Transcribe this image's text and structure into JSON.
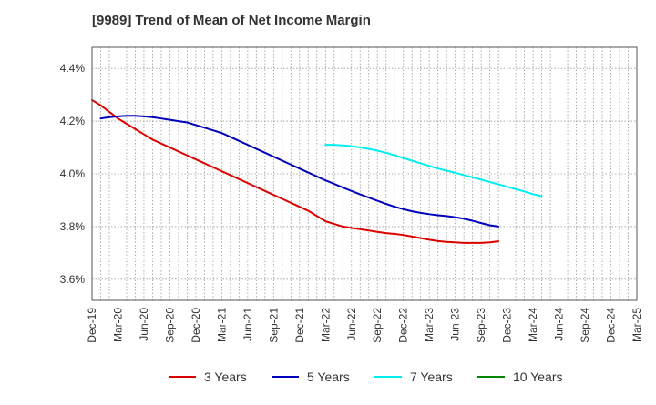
{
  "chart_data": {
    "type": "line",
    "title": "[9989]  Trend of Mean of Net Income Margin",
    "xlabel": "",
    "ylabel": "",
    "x_ticks": [
      "Dec-19",
      "Mar-20",
      "Jun-20",
      "Sep-20",
      "Dec-20",
      "Mar-21",
      "Jun-21",
      "Sep-21",
      "Dec-21",
      "Mar-22",
      "Jun-22",
      "Sep-22",
      "Dec-22",
      "Mar-23",
      "Jun-23",
      "Sep-23",
      "Dec-23",
      "Mar-24",
      "Jun-24",
      "Sep-24",
      "Dec-24",
      "Mar-25"
    ],
    "y_ticks": [
      "3.6%",
      "3.8%",
      "4.0%",
      "4.2%",
      "4.4%"
    ],
    "y_tick_values": [
      3.6,
      3.8,
      4.0,
      4.2,
      4.4
    ],
    "ylim": [
      3.52,
      4.48
    ],
    "grid": true,
    "legend_position": "bottom",
    "series": [
      {
        "name": "3 Years",
        "color": "#dd0000",
        "start_index": 0,
        "values": [
          4.28,
          4.26,
          4.235,
          4.21,
          4.19,
          4.17,
          4.15,
          4.13,
          4.115,
          4.1,
          4.085,
          4.07,
          4.055,
          4.04,
          4.025,
          4.01,
          3.995,
          3.98,
          3.965,
          3.95,
          3.935,
          3.92,
          3.905,
          3.89,
          3.875,
          3.86,
          3.84,
          3.82,
          3.81,
          3.8,
          3.795,
          3.79,
          3.785,
          3.78,
          3.775,
          3.772,
          3.768,
          3.762,
          3.756,
          3.75,
          3.745,
          3.742,
          3.74,
          3.738,
          3.738,
          3.738,
          3.74,
          3.744
        ]
      },
      {
        "name": "5 Years",
        "color": "#0000bb",
        "start_index": 1,
        "values": [
          4.21,
          4.215,
          4.218,
          4.22,
          4.22,
          4.218,
          4.215,
          4.21,
          4.205,
          4.2,
          4.195,
          4.185,
          4.175,
          4.165,
          4.155,
          4.14,
          4.125,
          4.11,
          4.095,
          4.08,
          4.065,
          4.05,
          4.035,
          4.02,
          4.005,
          3.99,
          3.975,
          3.962,
          3.948,
          3.935,
          3.922,
          3.91,
          3.898,
          3.886,
          3.875,
          3.866,
          3.858,
          3.852,
          3.847,
          3.843,
          3.84,
          3.835,
          3.83,
          3.822,
          3.813,
          3.805,
          3.8
        ]
      },
      {
        "name": "7 Years",
        "color": "#00eeee",
        "start_index": 27,
        "values": [
          4.11,
          4.11,
          4.108,
          4.105,
          4.1,
          4.095,
          4.088,
          4.08,
          4.07,
          4.06,
          4.05,
          4.04,
          4.03,
          4.02,
          4.012,
          4.004,
          3.995,
          3.987,
          3.978,
          3.969,
          3.96,
          3.951,
          3.942,
          3.933,
          3.923,
          3.915
        ]
      },
      {
        "name": "10 Years",
        "color": "#008800",
        "start_index": 0,
        "values": []
      }
    ]
  }
}
